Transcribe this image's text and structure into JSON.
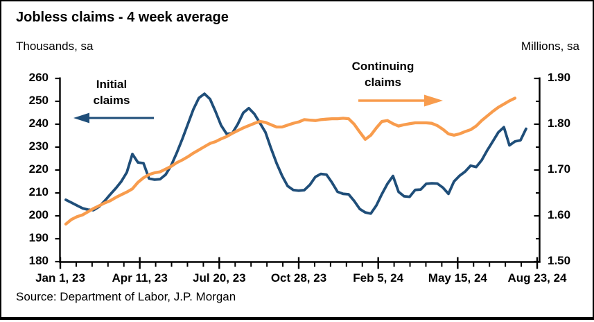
{
  "header": {
    "title": "Jobless claims - 4 week average",
    "left_axis_units": "Thousands, sa",
    "right_axis_units": "Millions, sa"
  },
  "footer": {
    "source": "Source: Department of Labor, J.P. Morgan"
  },
  "annotations": {
    "initial": {
      "line1": "Initial",
      "line2": "claims",
      "color": "#1F4E79"
    },
    "continuing": {
      "line1": "Continuing",
      "line2": "claims",
      "color": "#F89C4D"
    }
  },
  "colors": {
    "axis": "#000000",
    "background": "#ffffff"
  },
  "chart_data": {
    "type": "line",
    "title": "Jobless claims - 4 week average",
    "grid": false,
    "x_axis": {
      "tick_labels": [
        "Jan 1, 23",
        "Apr 11, 23",
        "Jul 20, 23",
        "Oct 28, 23",
        "Feb 5, 24",
        "May 15, 24",
        "Aug 23, 24"
      ],
      "weeks_total": 86,
      "minor_ticks_per_gap": 4
    },
    "left_axis": {
      "units": "Thousands, sa",
      "min": 180,
      "max": 260,
      "tick_step": 10,
      "tick_labels": [
        "260",
        "250",
        "240",
        "230",
        "220",
        "210",
        "200",
        "190",
        "180"
      ]
    },
    "right_axis": {
      "units": "Millions, sa",
      "min": 1.5,
      "max": 1.9,
      "tick_step": 0.1,
      "minor_step": 0.05,
      "tick_labels": [
        "1.90",
        "1.80",
        "1.70",
        "1.60",
        "1.50"
      ]
    },
    "series": [
      {
        "name": "Initial claims",
        "axis": "left",
        "color": "#1F4E79",
        "stroke_width": 3.8,
        "start_week": 1,
        "weekly_values": [
          207.0,
          205.8,
          204.5,
          203.3,
          202.7,
          202.5,
          204.0,
          206.5,
          209.3,
          212.0,
          215.0,
          219.0,
          227.0,
          223.3,
          223.0,
          216.3,
          215.8,
          216.0,
          218.0,
          222.0,
          227.5,
          233.5,
          240.0,
          246.5,
          251.5,
          253.3,
          251.0,
          245.5,
          239.5,
          235.8,
          236.0,
          240.0,
          245.0,
          247.0,
          244.5,
          240.5,
          236.5,
          229.5,
          223.0,
          217.5,
          213.0,
          211.3,
          211.0,
          211.2,
          213.5,
          217.0,
          218.3,
          218.0,
          214.5,
          210.5,
          209.6,
          209.4,
          206.5,
          203.0,
          201.5,
          201.0,
          204.5,
          209.5,
          214.0,
          217.4,
          210.5,
          208.5,
          208.3,
          211.3,
          211.5,
          214.0,
          214.2,
          214.1,
          212.3,
          209.6,
          215.0,
          217.5,
          219.3,
          221.9,
          221.3,
          224.3,
          228.6,
          232.5,
          236.5,
          238.7,
          230.8,
          232.5,
          233.0,
          238.0
        ]
      },
      {
        "name": "Continuing claims",
        "axis": "right",
        "color": "#F89C4D",
        "stroke_width": 4.3,
        "start_week": 1,
        "weekly_values": [
          1.582,
          1.592,
          1.598,
          1.602,
          1.609,
          1.616,
          1.622,
          1.628,
          1.633,
          1.64,
          1.646,
          1.652,
          1.659,
          1.673,
          1.683,
          1.69,
          1.694,
          1.696,
          1.702,
          1.708,
          1.716,
          1.722,
          1.729,
          1.737,
          1.744,
          1.751,
          1.758,
          1.762,
          1.768,
          1.773,
          1.78,
          1.786,
          1.792,
          1.797,
          1.802,
          1.806,
          1.804,
          1.799,
          1.794,
          1.794,
          1.798,
          1.802,
          1.805,
          1.81,
          1.809,
          1.808,
          1.81,
          1.811,
          1.812,
          1.812,
          1.813,
          1.812,
          1.8,
          1.783,
          1.767,
          1.776,
          1.792,
          1.806,
          1.808,
          1.801,
          1.796,
          1.799,
          1.801,
          1.803,
          1.803,
          1.803,
          1.802,
          1.797,
          1.789,
          1.779,
          1.776,
          1.779,
          1.784,
          1.788,
          1.796,
          1.808,
          1.818,
          1.828,
          1.837,
          1.844,
          1.851,
          1.857
        ]
      }
    ]
  }
}
